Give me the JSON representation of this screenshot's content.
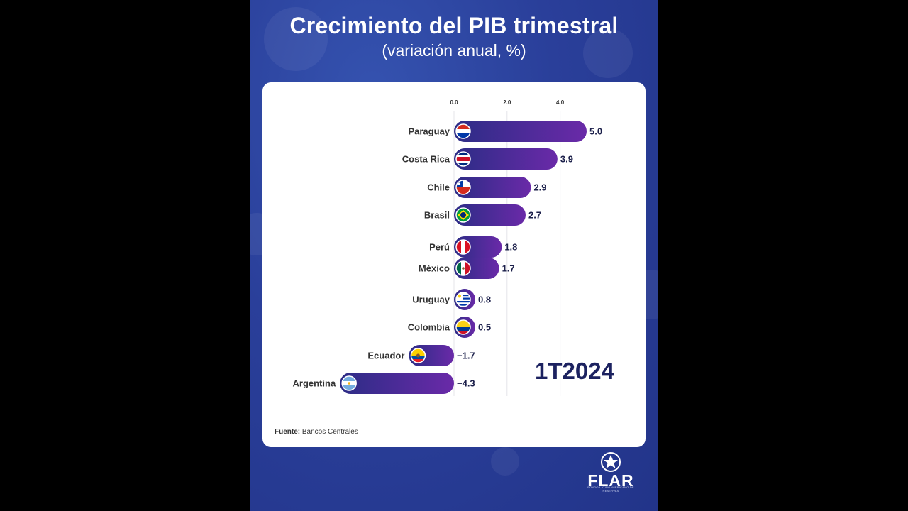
{
  "header": {
    "title": "Crecimiento del PIB trimestral",
    "subtitle": "(variación anual, %)"
  },
  "chart_data": {
    "type": "bar",
    "orientation": "horizontal",
    "categories": [
      "Paraguay",
      "Costa Rica",
      "Chile",
      "Brasil",
      "Perú",
      "México",
      "Uruguay",
      "Colombia",
      "Ecuador",
      "Argentina"
    ],
    "values": [
      5.0,
      3.9,
      2.9,
      2.7,
      1.8,
      1.7,
      0.8,
      0.5,
      -1.7,
      -4.3
    ],
    "value_labels": [
      "5.0",
      "3.9",
      "2.9",
      "2.7",
      "1.8",
      "1.7",
      "0.8",
      "0.5",
      "−1.7",
      "−4.3"
    ],
    "x_ticks": [
      0.0,
      2.0,
      4.0
    ],
    "x_tick_labels": [
      "0.0",
      "2.0",
      "4.0"
    ],
    "xlim": [
      -4.3,
      5.0
    ],
    "grid": true,
    "bar_gradient": [
      "#2c2c86",
      "#6a2aa8"
    ]
  },
  "annotation": {
    "period": "1T2024"
  },
  "footer": {
    "source_label": "Fuente:",
    "source_text": "Bancos Centrales"
  },
  "logo": {
    "text": "FLAR",
    "tagline": "FONDO LATINOAMERICANO DE RESERVAS"
  },
  "colors": {
    "background": "#2a3f9a",
    "card": "#ffffff",
    "period_text": "#1c2260"
  },
  "flags": [
    "flag-paraguay-icon",
    "flag-costa-rica-icon",
    "flag-chile-icon",
    "flag-brasil-icon",
    "flag-peru-icon",
    "flag-mexico-icon",
    "flag-uruguay-icon",
    "flag-colombia-icon",
    "flag-ecuador-icon",
    "flag-argentina-icon"
  ]
}
